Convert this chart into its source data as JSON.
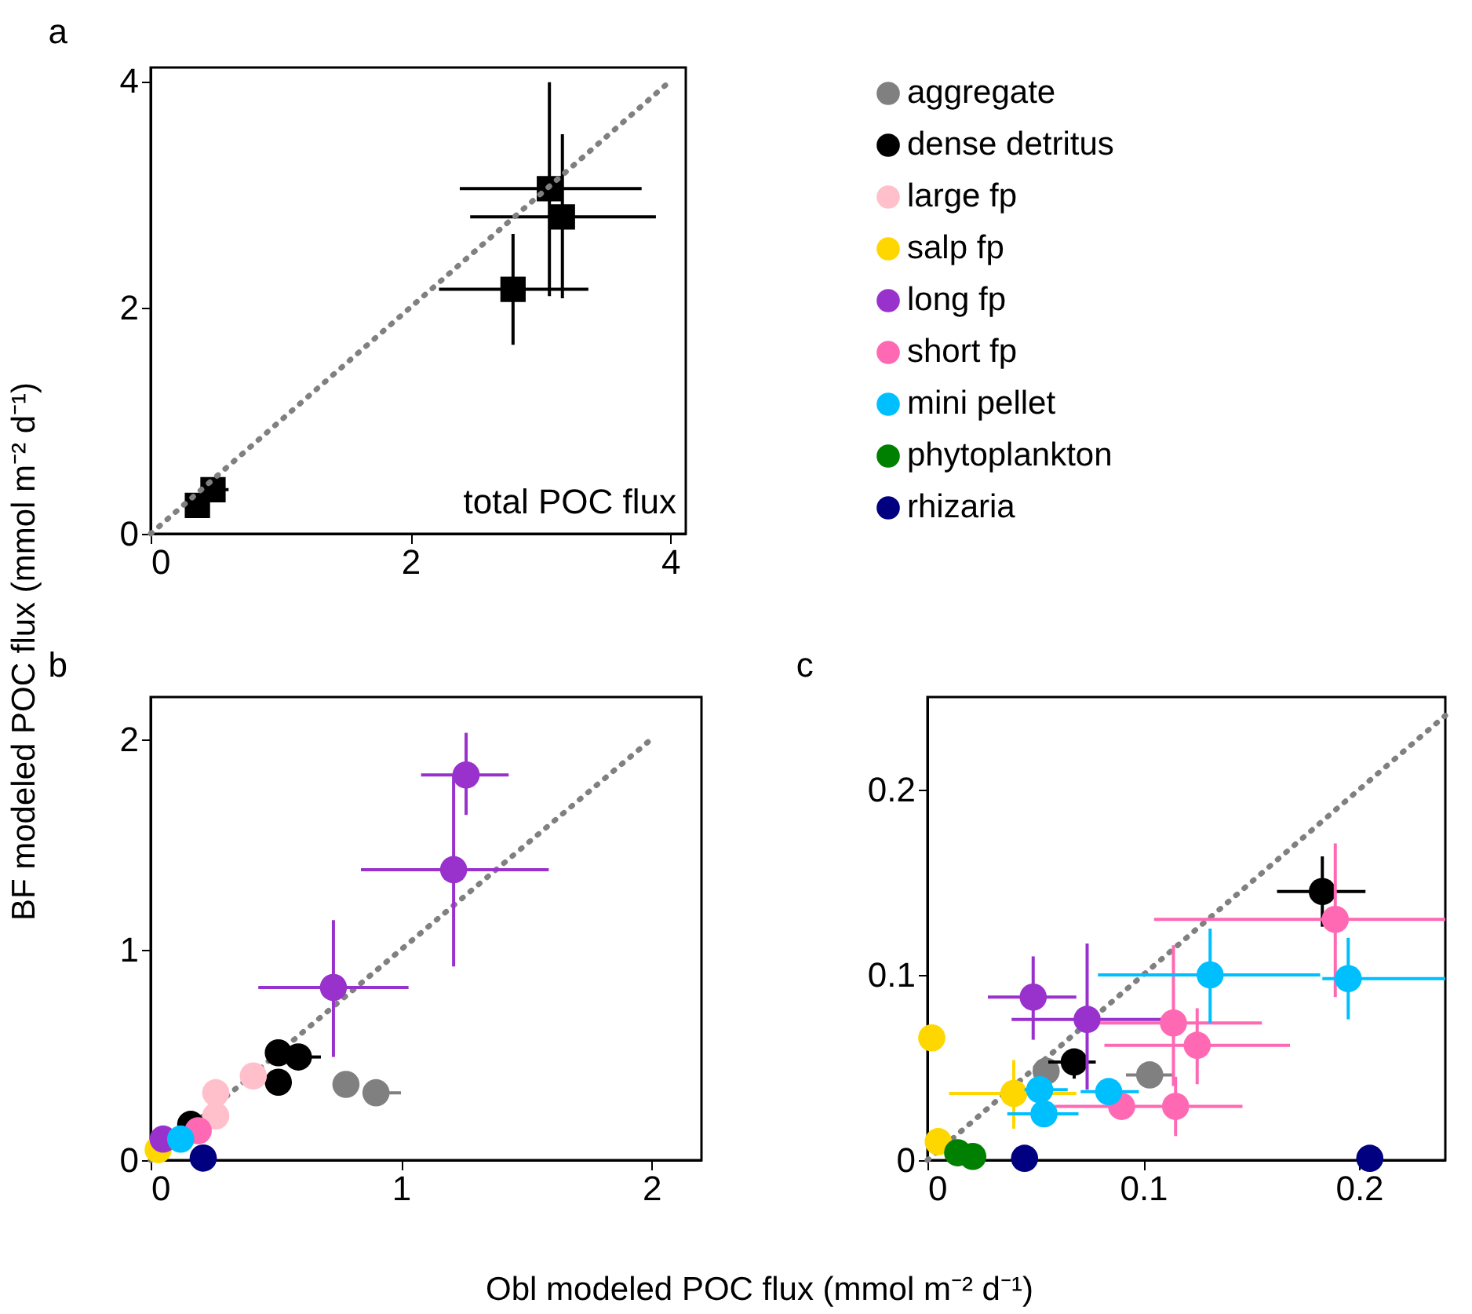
{
  "chart_data": [
    {
      "type": "scatter",
      "title": "a",
      "marker": "square",
      "xlim": [
        0,
        4.12
      ],
      "ylim": [
        0,
        4.12
      ],
      "xticks": [
        0,
        2,
        4
      ],
      "yticks": [
        0,
        2,
        4
      ],
      "grid": false,
      "annotations": [
        "total POC flux"
      ],
      "series": [
        {
          "color": "#000000",
          "x": [
            3.07,
            3.17,
            2.79,
            0.48,
            0.36
          ],
          "values": [
            3.05,
            2.8,
            2.16,
            0.39,
            0.25
          ],
          "xerrors": [
            [
              2.38,
              3.78
            ],
            [
              2.46,
              3.89
            ],
            [
              2.22,
              3.37
            ],
            [
              0.45,
              0.6
            ],
            null
          ],
          "errors": [
            [
              2.1,
              3.99
            ],
            [
              2.08,
              3.53
            ],
            [
              1.67,
              2.65
            ],
            null,
            null
          ]
        },
        {
          "type": "line",
          "marker": "none",
          "line_style": "dotted",
          "color": "#808080",
          "x": [
            0,
            4
          ],
          "values": [
            0,
            4
          ]
        }
      ]
    },
    {
      "type": "scatter",
      "title": "b",
      "marker": "circle",
      "xlim": [
        0,
        2.2
      ],
      "ylim": [
        0,
        2.2
      ],
      "xticks": [
        0,
        1,
        2
      ],
      "yticks": [
        0,
        1,
        2
      ],
      "grid": false,
      "legend": "top right",
      "xlabel": "Obl modeled POC flux (mmol m⁻² d⁻¹)",
      "ylabel": "BF modeled POC flux (mmol m⁻² d⁻¹)",
      "series": [
        {
          "type": "line",
          "marker": "none",
          "line_style": "dotted",
          "color": "#808080",
          "x": [
            0,
            2
          ],
          "values": [
            0,
            2
          ]
        },
        {
          "name": "aggregate",
          "color": "#808080",
          "x": [
            0.78,
            0.9
          ],
          "values": [
            0.36,
            0.32
          ],
          "xerrors": [
            null,
            [
              0.85,
              1.0
            ]
          ],
          "errors": [
            null,
            [
              0.27,
              0.37
            ]
          ]
        },
        {
          "name": "dense detritus",
          "color": "#000000",
          "x": [
            0.51,
            0.59,
            0.51,
            0.16
          ],
          "values": [
            0.51,
            0.49,
            0.37,
            0.17
          ],
          "xerrors": [
            null,
            [
              0.59,
              0.68
            ],
            null,
            null
          ]
        },
        {
          "name": "large fp",
          "color": "#ffc0cb",
          "x": [
            0.41,
            0.26,
            0.26
          ],
          "values": [
            0.4,
            0.32,
            0.21
          ]
        },
        {
          "name": "salp fp",
          "color": "#ffd700",
          "x": [
            0.03
          ],
          "values": [
            0.05
          ]
        },
        {
          "name": "long fp",
          "color": "#9932cc",
          "x": [
            1.26,
            1.21,
            0.73,
            0.05
          ],
          "values": [
            1.83,
            1.38,
            0.82,
            0.1
          ],
          "xerrors": [
            [
              1.08,
              1.43
            ],
            [
              0.84,
              1.59
            ],
            [
              0.43,
              1.03
            ],
            null
          ],
          "errors": [
            [
              1.64,
              2.03
            ],
            [
              0.92,
              1.83
            ],
            [
              0.49,
              1.14
            ],
            null
          ]
        },
        {
          "name": "short fp",
          "color": "#ff69b4",
          "x": [
            0.19
          ],
          "values": [
            0.14
          ]
        },
        {
          "name": "mini pellet",
          "color": "#00bfff",
          "x": [
            0.12
          ],
          "values": [
            0.1
          ]
        },
        {
          "name": "rhizaria",
          "color": "#000080",
          "x": [
            0.21
          ],
          "values": [
            0.01
          ]
        }
      ]
    },
    {
      "type": "scatter",
      "title": "c",
      "marker": "circle",
      "xlim": [
        0,
        0.24
      ],
      "ylim": [
        0,
        0.25
      ],
      "xticks": [
        0,
        0.1,
        0.2
      ],
      "yticks": [
        0,
        0.1,
        0.2
      ],
      "grid": false,
      "series": [
        {
          "type": "line",
          "marker": "none",
          "line_style": "dotted",
          "color": "#808080",
          "x": [
            0,
            0.24
          ],
          "values": [
            0,
            0.24
          ]
        },
        {
          "name": "aggregate",
          "color": "#808080",
          "x": [
            0.055,
            0.103
          ],
          "values": [
            0.048,
            0.046
          ],
          "xerrors": [
            null,
            [
              0.092,
              0.114
            ]
          ]
        },
        {
          "name": "dense detritus",
          "color": "#000000",
          "x": [
            0.183,
            0.068
          ],
          "values": [
            0.145,
            0.053
          ],
          "xerrors": [
            [
              0.162,
              0.203
            ],
            [
              0.056,
              0.078
            ]
          ],
          "errors": [
            [
              0.126,
              0.164
            ],
            [
              0.044,
              0.06
            ]
          ]
        },
        {
          "name": "salp fp",
          "color": "#ffd700",
          "x": [
            0.002,
            0.005,
            0.04
          ],
          "values": [
            0.066,
            0.01,
            0.036
          ],
          "xerrors": [
            null,
            null,
            [
              0.01,
              0.069
            ]
          ],
          "errors": [
            null,
            null,
            [
              0.017,
              0.054
            ]
          ]
        },
        {
          "name": "long fp",
          "color": "#9932cc",
          "x": [
            0.049,
            0.074
          ],
          "values": [
            0.088,
            0.076
          ],
          "xerrors": [
            [
              0.028,
              0.069
            ],
            [
              0.039,
              0.109
            ]
          ],
          "errors": [
            [
              0.065,
              0.11
            ],
            [
              0.038,
              0.117
            ]
          ]
        },
        {
          "name": "short fp",
          "color": "#ff69b4",
          "x": [
            0.189,
            0.114,
            0.125,
            0.115,
            0.09
          ],
          "values": [
            0.13,
            0.074,
            0.062,
            0.029,
            0.029
          ],
          "xerrors": [
            [
              0.105,
              0.24
            ],
            [
              0.08,
              0.155
            ],
            [
              0.082,
              0.168
            ],
            [
              0.059,
              0.146
            ],
            null
          ],
          "errors": [
            [
              0.088,
              0.171
            ],
            [
              0.04,
              0.116
            ],
            [
              0.041,
              0.082
            ],
            [
              0.013,
              0.045
            ],
            null
          ]
        },
        {
          "name": "mini pellet",
          "color": "#00bfff",
          "x": [
            0.131,
            0.195,
            0.052,
            0.054,
            0.084
          ],
          "values": [
            0.1,
            0.098,
            0.038,
            0.025,
            0.037
          ],
          "xerrors": [
            [
              0.079,
              0.182
            ],
            [
              0.183,
              0.24
            ],
            [
              0.045,
              0.065
            ],
            [
              0.037,
              0.07
            ],
            [
              0.071,
              0.098
            ]
          ],
          "errors": [
            [
              0.074,
              0.125
            ],
            [
              0.076,
              0.12
            ],
            null,
            [
              0.018,
              0.032
            ],
            null
          ]
        },
        {
          "name": "phytoplankton",
          "color": "#008000",
          "x": [
            0.014,
            0.021
          ],
          "values": [
            0.004,
            0.002
          ]
        },
        {
          "name": "rhizaria",
          "color": "#000080",
          "x": [
            0.045,
            0.205
          ],
          "values": [
            0.001,
            0.001
          ]
        }
      ]
    }
  ]
}
